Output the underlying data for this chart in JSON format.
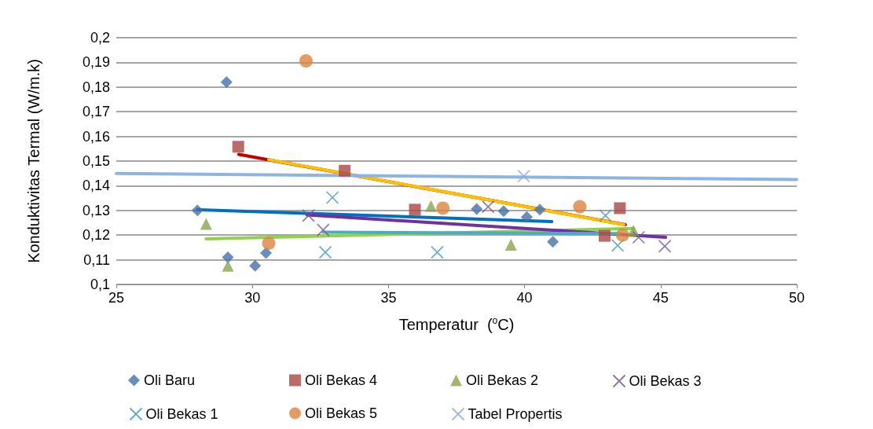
{
  "chart_data": {
    "type": "scatter",
    "xlabel": "Temperatur  ($^{o}$C)",
    "ylabel": "Konduktivitas Termal (W/m.k)",
    "xlim": [
      25,
      50
    ],
    "xticks": [
      25,
      30,
      35,
      40,
      45,
      50
    ],
    "ylim": [
      0.1,
      0.2
    ],
    "yticks": [
      {
        "value": 0.1,
        "label": "0,1"
      },
      {
        "value": 0.11,
        "label": "0,11"
      },
      {
        "value": 0.12,
        "label": "0,12"
      },
      {
        "value": 0.13,
        "label": "0,13"
      },
      {
        "value": 0.14,
        "label": "0,14"
      },
      {
        "value": 0.15,
        "label": "0,15"
      },
      {
        "value": 0.16,
        "label": "0,16"
      },
      {
        "value": 0.17,
        "label": "0,17"
      },
      {
        "value": 0.18,
        "label": "0,18"
      },
      {
        "value": 0.19,
        "label": "0,19"
      },
      {
        "value": 0.2,
        "label": "0,2"
      }
    ],
    "grid": "y",
    "legend": "bottom",
    "series": [
      {
        "name": "Oli Baru",
        "color": "#4572a7",
        "marker": "diamond",
        "x": [
          27.98,
          29.05,
          29.1,
          30.1,
          30.5,
          38.24,
          39.23,
          40.08,
          40.56,
          41.04
        ],
        "values": [
          0.13,
          0.182,
          0.111,
          0.1076,
          0.1127,
          0.1306,
          0.1297,
          0.1273,
          0.1303,
          0.1173
        ]
      },
      {
        "name": "Oli Bekas 4",
        "color": "#aa4643",
        "marker": "square",
        "x": [
          29.48,
          33.39,
          35.97,
          43.5,
          42.94
        ],
        "values": [
          0.1558,
          0.1461,
          0.1303,
          0.1309,
          0.1197
        ]
      },
      {
        "name": "Oli Bekas 2",
        "color": "#89a54e",
        "marker": "triangle",
        "x": [
          28.3,
          29.1,
          36.56,
          39.5,
          44.0
        ],
        "values": [
          0.1245,
          0.1076,
          0.1318,
          0.1161,
          0.1218
        ]
      },
      {
        "name": "Oli Bekas 3",
        "color": "#71588f",
        "marker": "cross",
        "x": [
          32.06,
          32.6,
          38.66,
          44.19,
          45.15
        ],
        "values": [
          0.1279,
          0.1221,
          0.1315,
          0.1191,
          0.1155
        ]
      },
      {
        "name": "Oli Bekas 1",
        "color": "#4198af",
        "marker": "cross",
        "x": [
          32.94,
          32.68,
          36.79,
          42.97,
          43.42
        ],
        "values": [
          0.1352,
          0.113,
          0.113,
          0.1279,
          0.1158
        ]
      },
      {
        "name": "Oli Bekas 5",
        "color": "#db843d",
        "marker": "circle",
        "x": [
          31.97,
          30.6,
          37.0,
          42.03,
          43.6
        ],
        "values": [
          0.1906,
          0.1167,
          0.1309,
          0.1315,
          0.12
        ]
      },
      {
        "name": "Tabel Propertis",
        "color": "#93a9cf",
        "marker": "cross",
        "x": [
          39.97
        ],
        "values": [
          0.1439
        ]
      },
      {
        "type": "line",
        "color": "#0070c0",
        "marker": "none",
        "x": [
          27.98,
          41.0
        ],
        "values": [
          0.1303,
          0.1255
        ]
      },
      {
        "type": "line",
        "color": "#c00000",
        "marker": "none",
        "x": [
          29.5,
          43.7
        ],
        "values": [
          0.1527,
          0.1242
        ]
      },
      {
        "type": "line",
        "color": "#92d050",
        "marker": "none",
        "x": [
          28.3,
          44.0
        ],
        "values": [
          0.1185,
          0.1227
        ]
      },
      {
        "type": "line",
        "color": "#7030a0",
        "marker": "none",
        "x": [
          32.0,
          45.18
        ],
        "values": [
          0.1282,
          0.1191
        ]
      },
      {
        "type": "line",
        "color": "#4bacc6",
        "marker": "none",
        "x": [
          32.6,
          43.48
        ],
        "values": [
          0.1212,
          0.1206
        ]
      },
      {
        "type": "line",
        "color": "#ffc000",
        "marker": "none",
        "x": [
          30.6,
          43.65
        ],
        "values": [
          0.1506,
          0.1242
        ]
      },
      {
        "type": "line",
        "color": "#8eb4e3",
        "marker": "none",
        "x": [
          25,
          50
        ],
        "values": [
          0.145,
          0.1425
        ]
      }
    ]
  }
}
